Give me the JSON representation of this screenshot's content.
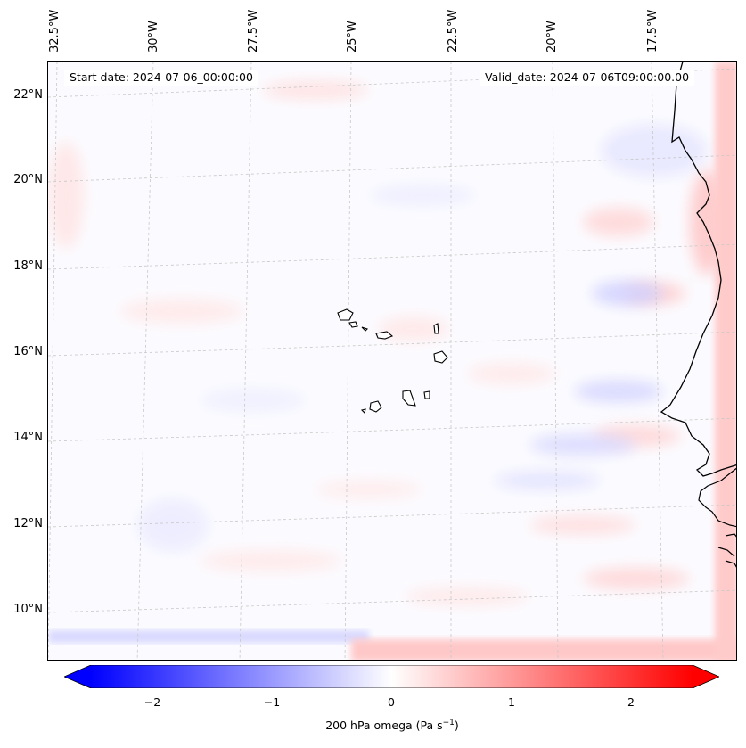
{
  "longitude_labels": [
    "32.5°W",
    "30°W",
    "27.5°W",
    "25°W",
    "22.5°W",
    "20°W",
    "17.5°W"
  ],
  "latitude_labels": [
    "22°N",
    "20°N",
    "18°N",
    "16°N",
    "14°N",
    "12°N",
    "10°N"
  ],
  "start_date": "Start date: 2024-07-06_00:00:00",
  "valid_date": "Valid_date: 2024-07-06T09:00:00.00",
  "colorbar": {
    "ticks": [
      "−2",
      "−1",
      "0",
      "1",
      "2"
    ],
    "label_main": "200 hPa omega (Pa s",
    "label_sup": "−1",
    "label_end": ")",
    "min_color": "#0000ff",
    "mid_color": "#ffffff",
    "max_color": "#ff0000"
  },
  "colors": {
    "coastline": "#000000",
    "gridline": "#c8c8c8",
    "ocean_background": "#fbfbff"
  }
}
